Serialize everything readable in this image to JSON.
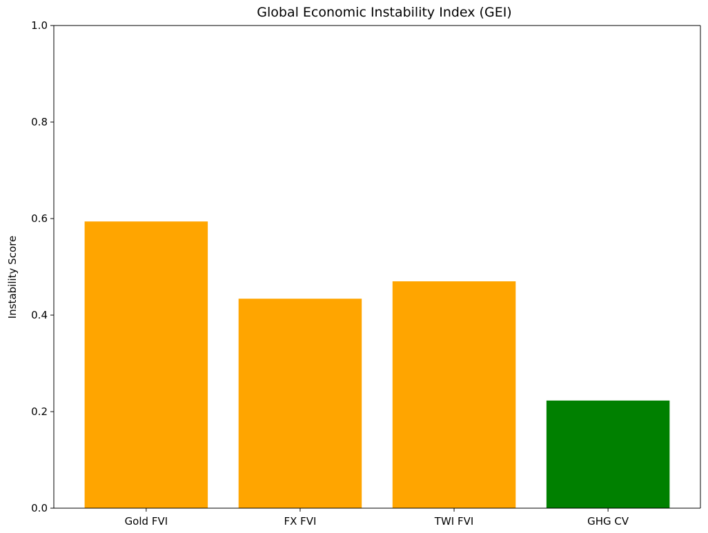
{
  "chart_data": {
    "type": "bar",
    "title": "Global Economic Instability Index (GEI)",
    "xlabel": "",
    "ylabel": "Instability Score",
    "categories": [
      "Gold FVI",
      "FX FVI",
      "TWI FVI",
      "GHG CV"
    ],
    "values": [
      0.594,
      0.434,
      0.47,
      0.223
    ],
    "colors": [
      "#FFA500",
      "#FFA500",
      "#FFA500",
      "#008000"
    ],
    "ylim": [
      0,
      1.0
    ],
    "yticks": [
      "0.0",
      "0.2",
      "0.4",
      "0.6",
      "0.8",
      "1.0"
    ],
    "grid": false
  }
}
